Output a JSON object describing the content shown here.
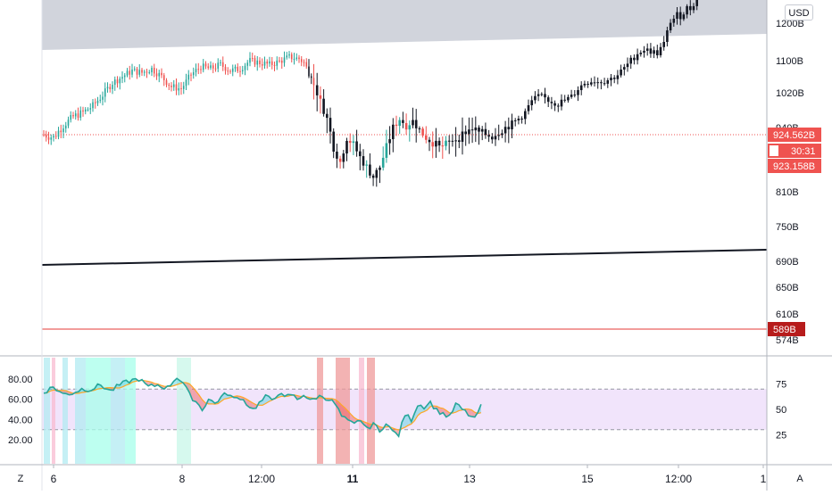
{
  "currency_button": "USD",
  "corner_left": "Z",
  "corner_right": "A",
  "colors": {
    "up": "#26a69a",
    "down": "#ef5350",
    "tagRed": "#ef5350",
    "tagDarkRed": "#b71c1c",
    "rsiBand": "#f1e4fb",
    "zone": "#d1d4dc"
  },
  "price_axis": {
    "ticks": [
      "1200B",
      "1100B",
      "1020B",
      "940B",
      "810B",
      "750B",
      "690B",
      "650B",
      "610B",
      "574B"
    ]
  },
  "price_tags": {
    "current": "924.562B",
    "countdown": "30:31",
    "lower": "923.158B",
    "level": "589B"
  },
  "rsi_left_axis": [
    "80.00",
    "60.00",
    "40.00",
    "20.00"
  ],
  "rsi_right_axis": [
    "75",
    "50",
    "25"
  ],
  "time_axis": [
    "6",
    "8",
    "12:00",
    "11",
    "13",
    "15",
    "12:00",
    "1"
  ],
  "time_axis_bold": [
    false,
    false,
    false,
    true,
    false,
    false,
    false,
    false
  ],
  "chart_data": {
    "type": "candlestick",
    "price_close_path": [
      [
        0,
        926
      ],
      [
        4,
        920
      ],
      [
        8,
        945
      ],
      [
        12,
        965
      ],
      [
        16,
        975
      ],
      [
        20,
        990
      ],
      [
        24,
        1015
      ],
      [
        28,
        1045
      ],
      [
        32,
        1060
      ],
      [
        36,
        1075
      ],
      [
        40,
        1070
      ],
      [
        44,
        1080
      ],
      [
        48,
        1060
      ],
      [
        52,
        1035
      ],
      [
        56,
        1030
      ],
      [
        60,
        1065
      ],
      [
        64,
        1085
      ],
      [
        68,
        1080
      ],
      [
        72,
        1090
      ],
      [
        76,
        1075
      ],
      [
        80,
        1080
      ],
      [
        84,
        1100
      ],
      [
        88,
        1095
      ],
      [
        92,
        1090
      ],
      [
        96,
        1098
      ],
      [
        100,
        1110
      ],
      [
        104,
        1105
      ],
      [
        106,
        1095
      ],
      [
        108,
        1070
      ],
      [
        110,
        1040
      ],
      [
        112,
        1000
      ],
      [
        114,
        960
      ],
      [
        116,
        900
      ],
      [
        118,
        870
      ],
      [
        120,
        920
      ],
      [
        122,
        905
      ],
      [
        124,
        880
      ],
      [
        126,
        860
      ],
      [
        128,
        840
      ],
      [
        130,
        860
      ],
      [
        132,
        900
      ],
      [
        134,
        940
      ],
      [
        136,
        960
      ],
      [
        138,
        945
      ],
      [
        140,
        955
      ],
      [
        142,
        935
      ],
      [
        144,
        920
      ],
      [
        146,
        910
      ],
      [
        148,
        900
      ],
      [
        150,
        905
      ],
      [
        152,
        915
      ],
      [
        154,
        920
      ],
      [
        156,
        932
      ],
      [
        158,
        938
      ],
      [
        160,
        930
      ],
      [
        162,
        926
      ],
      [
        164,
        922
      ],
      [
        166,
        932
      ],
      [
        168,
        940
      ],
      [
        170,
        948
      ],
      [
        172,
        960
      ],
      [
        174,
        975
      ],
      [
        176,
        1000
      ],
      [
        178,
        1010
      ],
      [
        180,
        1007
      ],
      [
        182,
        1000
      ],
      [
        184,
        995
      ],
      [
        186,
        1002
      ],
      [
        188,
        1010
      ],
      [
        190,
        1030
      ],
      [
        192,
        1045
      ],
      [
        194,
        1050
      ],
      [
        196,
        1048
      ],
      [
        198,
        1050
      ],
      [
        200,
        1055
      ],
      [
        202,
        1065
      ],
      [
        204,
        1080
      ],
      [
        206,
        1100
      ],
      [
        208,
        1120
      ],
      [
        210,
        1130
      ],
      [
        212,
        1125
      ],
      [
        214,
        1120
      ],
      [
        216,
        1145
      ],
      [
        218,
        1205
      ],
      [
        220,
        1210
      ],
      [
        222,
        1220
      ],
      [
        224,
        1225
      ],
      [
        226,
        1245
      ]
    ],
    "rsi_path": [
      [
        0,
        67
      ],
      [
        3,
        72
      ],
      [
        6,
        65
      ],
      [
        9,
        66
      ],
      [
        12,
        70
      ],
      [
        15,
        70
      ],
      [
        18,
        74
      ],
      [
        21,
        68
      ],
      [
        24,
        74
      ],
      [
        27,
        78
      ],
      [
        30,
        80
      ],
      [
        33,
        72
      ],
      [
        36,
        74
      ],
      [
        39,
        71
      ],
      [
        42,
        82
      ],
      [
        44,
        76
      ],
      [
        46,
        64
      ],
      [
        48,
        58
      ],
      [
        50,
        50
      ],
      [
        52,
        60
      ],
      [
        54,
        56
      ],
      [
        56,
        62
      ],
      [
        58,
        66
      ],
      [
        60,
        60
      ],
      [
        62,
        62
      ],
      [
        64,
        56
      ],
      [
        66,
        50
      ],
      [
        68,
        56
      ],
      [
        70,
        62
      ],
      [
        72,
        60
      ],
      [
        74,
        66
      ],
      [
        76,
        61
      ],
      [
        78,
        65
      ],
      [
        80,
        60
      ],
      [
        82,
        65
      ],
      [
        84,
        58
      ],
      [
        86,
        62
      ],
      [
        88,
        63
      ],
      [
        90,
        60
      ],
      [
        92,
        55
      ],
      [
        94,
        43
      ],
      [
        96,
        38
      ],
      [
        98,
        35
      ],
      [
        100,
        40
      ],
      [
        102,
        30
      ],
      [
        104,
        37
      ],
      [
        106,
        27
      ],
      [
        108,
        38
      ],
      [
        110,
        28
      ],
      [
        112,
        25
      ],
      [
        114,
        45
      ],
      [
        116,
        40
      ],
      [
        118,
        55
      ],
      [
        120,
        53
      ],
      [
        122,
        57
      ],
      [
        124,
        49
      ],
      [
        126,
        46
      ],
      [
        128,
        42
      ],
      [
        130,
        55
      ],
      [
        132,
        50
      ],
      [
        134,
        45
      ],
      [
        136,
        40
      ],
      [
        138,
        55
      ]
    ],
    "price_axis_ticks": [
      1200,
      1100,
      1020,
      940,
      810,
      750,
      690,
      650,
      610,
      574
    ],
    "rsi_axis": [
      0,
      100
    ],
    "rsi_band": [
      30,
      70
    ],
    "horizontal_levels": [
      {
        "label": "589B",
        "value": 589
      }
    ],
    "time_labels": [
      "6",
      "8",
      "12:00",
      "11",
      "13",
      "15",
      "12:00",
      "1"
    ]
  }
}
